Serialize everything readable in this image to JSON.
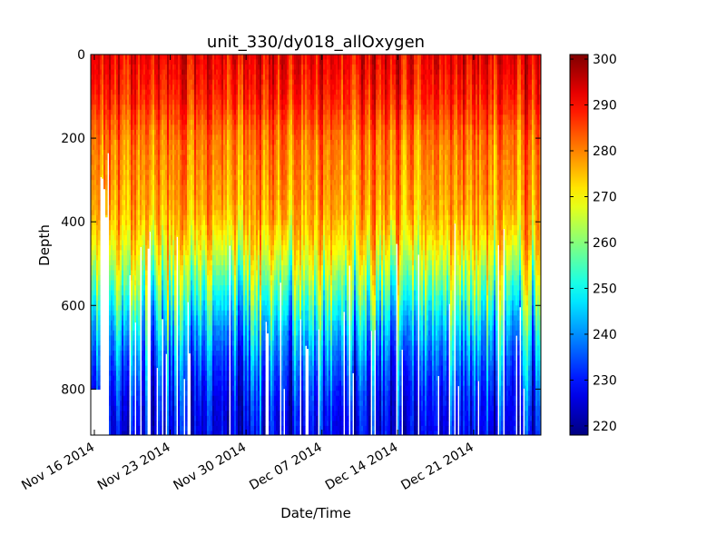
{
  "chart_data": {
    "type": "scatter",
    "title": "unit_330/dy018_allOxygen",
    "xlabel": "Date/Time",
    "ylabel": "Depth",
    "x_range": [
      "2014-11-15T16:00",
      "2014-12-27T05:00"
    ],
    "y_range": [
      910,
      0
    ],
    "y_inverted": true,
    "x_ticks": [
      "Nov 16 2014",
      "Nov 23 2014",
      "Nov 30 2014",
      "Dec 07 2014",
      "Dec 14 2014",
      "Dec 21 2014"
    ],
    "x_tick_dates": [
      "2014-11-16",
      "2014-11-23",
      "2014-11-30",
      "2014-12-07",
      "2014-12-14",
      "2014-12-21"
    ],
    "y_ticks": [
      0,
      200,
      400,
      600,
      800
    ],
    "grid": false,
    "colorbar": {
      "colormap": "jet",
      "vmin": 218,
      "vmax": 301,
      "ticks": [
        220,
        230,
        240,
        250,
        260,
        270,
        280,
        290,
        300
      ],
      "label": ""
    },
    "profile_summary": {
      "description_values": [
        {
          "depth": 0,
          "oxygen": 292
        },
        {
          "depth": 100,
          "oxygen": 288
        },
        {
          "depth": 200,
          "oxygen": 281
        },
        {
          "depth": 300,
          "oxygen": 279
        },
        {
          "depth": 400,
          "oxygen": 276
        },
        {
          "depth": 500,
          "oxygen": 266
        },
        {
          "depth": 600,
          "oxygen": 251
        },
        {
          "depth": 700,
          "oxygen": 239
        },
        {
          "depth": 800,
          "oxygen": 231
        },
        {
          "depth": 900,
          "oxygen": 226
        }
      ],
      "first_profile": {
        "date": "2014-11-16",
        "max_depth": 800
      }
    }
  }
}
